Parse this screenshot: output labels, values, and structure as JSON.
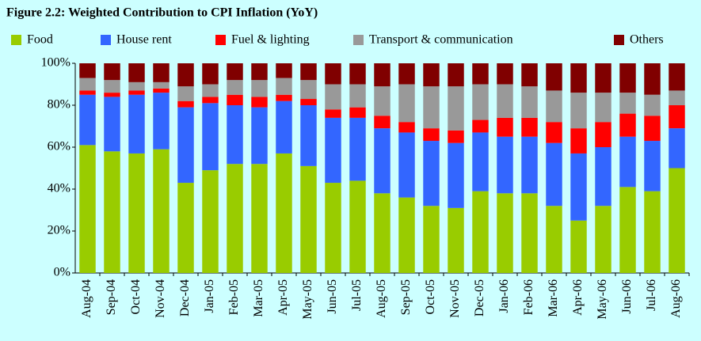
{
  "chart_data": {
    "type": "stacked_bar",
    "title": "Figure 2.2: Weighted Contribution to CPI Inflation (YoY)",
    "categories": [
      "Aug-04",
      "Sep-04",
      "Oct-04",
      "Nov-04",
      "Dec-04",
      "Jan-05",
      "Feb-05",
      "Mar-05",
      "Apr-05",
      "May-05",
      "Jun-05",
      "Jul-05",
      "Aug-05",
      "Sep-05",
      "Oct-05",
      "Nov-05",
      "Dec-05",
      "Jan-06",
      "Feb-06",
      "Mar-06",
      "Apr-06",
      "May-06",
      "Jun-06",
      "Jul-06",
      "Aug-06"
    ],
    "series": [
      {
        "name": "Food",
        "color": "#99cc00",
        "values": [
          61,
          58,
          57,
          59,
          43,
          49,
          52,
          52,
          57,
          51,
          43,
          44,
          38,
          36,
          32,
          31,
          39,
          38,
          38,
          32,
          25,
          32,
          41,
          39,
          50
        ]
      },
      {
        "name": "House rent",
        "color": "#3366ff",
        "values": [
          24,
          26,
          28,
          27,
          36,
          32,
          28,
          27,
          25,
          29,
          31,
          30,
          31,
          31,
          31,
          31,
          28,
          27,
          27,
          30,
          32,
          28,
          24,
          24,
          19
        ]
      },
      {
        "name": "Fuel & lighting",
        "color": "#ff0000",
        "values": [
          2,
          2,
          2,
          2,
          3,
          3,
          5,
          5,
          3,
          3,
          4,
          5,
          6,
          5,
          6,
          6,
          6,
          9,
          9,
          10,
          12,
          12,
          11,
          12,
          11
        ]
      },
      {
        "name": "Transport & communication",
        "color": "#999999",
        "values": [
          6,
          6,
          4,
          3,
          7,
          6,
          7,
          8,
          8,
          9,
          12,
          11,
          14,
          18,
          20,
          21,
          17,
          16,
          15,
          15,
          17,
          14,
          10,
          10,
          7
        ]
      },
      {
        "name": "Others",
        "color": "#800000",
        "values": [
          7,
          8,
          9,
          9,
          11,
          10,
          8,
          8,
          7,
          8,
          10,
          10,
          11,
          10,
          11,
          11,
          10,
          10,
          11,
          13,
          14,
          14,
          14,
          15,
          13
        ]
      }
    ],
    "ylim": [
      0,
      100
    ],
    "yticks": [
      {
        "value": 0,
        "label": "0%"
      },
      {
        "value": 20,
        "label": "20%"
      },
      {
        "value": 40,
        "label": "40%"
      },
      {
        "value": 60,
        "label": "60%"
      },
      {
        "value": 80,
        "label": "80%"
      },
      {
        "value": 100,
        "label": "100%"
      }
    ],
    "grid": false
  }
}
